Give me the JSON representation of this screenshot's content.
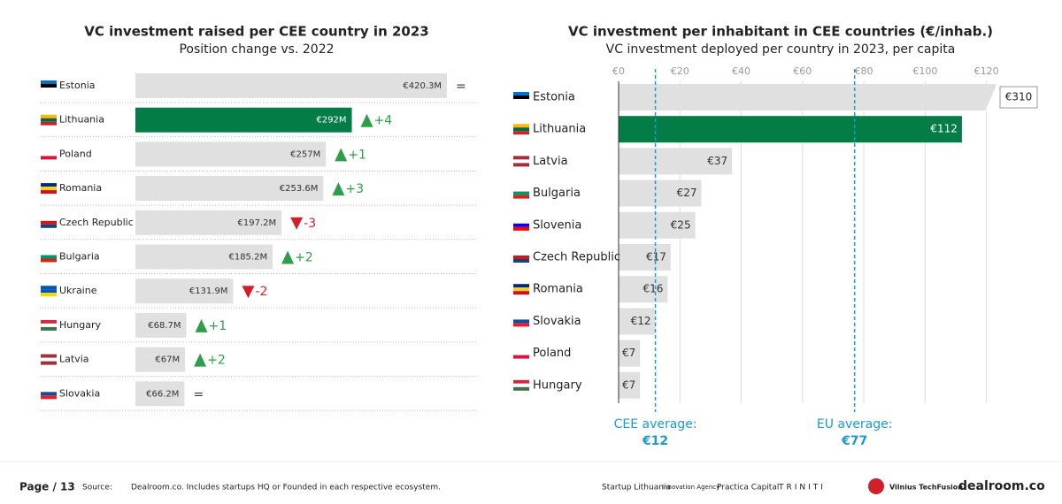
{
  "chart_data": [
    {
      "type": "bar",
      "orientation": "horizontal",
      "title": "VC investment raised per CEE country in 2023",
      "subtitle": "Position change vs. 2022",
      "categories": [
        "Estonia",
        "Lithuania",
        "Poland",
        "Romania",
        "Czech Republic",
        "Bulgaria",
        "Ukraine",
        "Hungary",
        "Latvia",
        "Slovakia"
      ],
      "values": [
        420.3,
        292,
        257,
        253.6,
        197.2,
        185.2,
        131.9,
        68.7,
        67,
        66.2
      ],
      "value_labels": [
        "€420.3M",
        "€292M",
        "€257M",
        "€253.6M",
        "€197.2M",
        "€185.2M",
        "€131.9M",
        "€68.7M",
        "€67M",
        "€66.2M"
      ],
      "position_change": [
        "=",
        "+4",
        "+1",
        "+3",
        "-3",
        "+2",
        "-2",
        "+1",
        "+2",
        "="
      ],
      "color": "#e0e0e0",
      "highlight": "Lithuania",
      "highlight_color": "#037c45",
      "up_color": "#2e9e4b",
      "down_color": "#d0202a",
      "flag_colors": [
        [
          "#0072ce",
          "#000000",
          "#ffffff"
        ],
        [
          "#fdb913",
          "#006a44",
          "#c1272d"
        ],
        [
          "#ffffff",
          "#ffffff",
          "#dc143c"
        ],
        [
          "#002b7f",
          "#fcd116",
          "#ce1126"
        ],
        [
          "#ffffff",
          "#d7141a",
          "#11457e"
        ],
        [
          "#ffffff",
          "#00966e",
          "#d62612"
        ],
        [
          "#0057b7",
          "#0057b7",
          "#ffd700"
        ],
        [
          "#cd2a3e",
          "#ffffff",
          "#436f4d"
        ],
        [
          "#9e3039",
          "#ffffff",
          "#9e3039"
        ],
        [
          "#ffffff",
          "#0b4ea2",
          "#ee1c25"
        ]
      ]
    },
    {
      "type": "bar",
      "orientation": "horizontal",
      "title": "VC investment per inhabitant in CEE countries (€/inhab.)",
      "subtitle": "VC investment deployed per country in 2023, per capita",
      "categories": [
        "Estonia",
        "Lithuania",
        "Latvia",
        "Bulgaria",
        "Slovenia",
        "Czech Republic",
        "Romania",
        "Slovakia",
        "Poland",
        "Hungary"
      ],
      "values": [
        310,
        112,
        37,
        27,
        25,
        17,
        16,
        12,
        7,
        7
      ],
      "value_labels": [
        "€310",
        "€112",
        "€37",
        "€27",
        "€25",
        "€17",
        "€16",
        "€12",
        "€7",
        "€7"
      ],
      "xlim": [
        0,
        123
      ],
      "xticks": [
        {
          "value": 0,
          "label": "€0"
        },
        {
          "value": 20,
          "label": "€20"
        },
        {
          "value": 40,
          "label": "€40"
        },
        {
          "value": 60,
          "label": "€60"
        },
        {
          "value": 80,
          "label": "€80"
        },
        {
          "value": 100,
          "label": "€100"
        },
        {
          "value": 120,
          "label": "€120"
        }
      ],
      "grid": true,
      "color": "#e0e0e0",
      "highlight": "Lithuania",
      "highlight_color": "#037c45",
      "reference_lines": [
        {
          "label": "CEE average:",
          "value": 12,
          "value_label": "€12"
        },
        {
          "label": "EU average:",
          "value": 77,
          "value_label": "€77"
        }
      ],
      "reference_color": "#1a9bd7",
      "flag_colors": [
        [
          "#0072ce",
          "#000000",
          "#ffffff"
        ],
        [
          "#fdb913",
          "#006a44",
          "#c1272d"
        ],
        [
          "#9e3039",
          "#ffffff",
          "#9e3039"
        ],
        [
          "#ffffff",
          "#00966e",
          "#d62612"
        ],
        [
          "#ffffff",
          "#0000ff",
          "#ff0000"
        ],
        [
          "#ffffff",
          "#d7141a",
          "#11457e"
        ],
        [
          "#002b7f",
          "#fcd116",
          "#ce1126"
        ],
        [
          "#ffffff",
          "#0b4ea2",
          "#ee1c25"
        ],
        [
          "#ffffff",
          "#ffffff",
          "#dc143c"
        ],
        [
          "#cd2a3e",
          "#ffffff",
          "#436f4d"
        ]
      ]
    }
  ],
  "footer": {
    "page": "Page / 13",
    "source_label": "Source:",
    "source": "Dealroom.co. Includes startups HQ or Founded in each respective ecosystem.",
    "logos": [
      "Startup Lithuania",
      "Innovation Agency",
      "Practica Capital",
      "TRINITI",
      "Vilnius TechFusion",
      "dealroom.co"
    ]
  }
}
